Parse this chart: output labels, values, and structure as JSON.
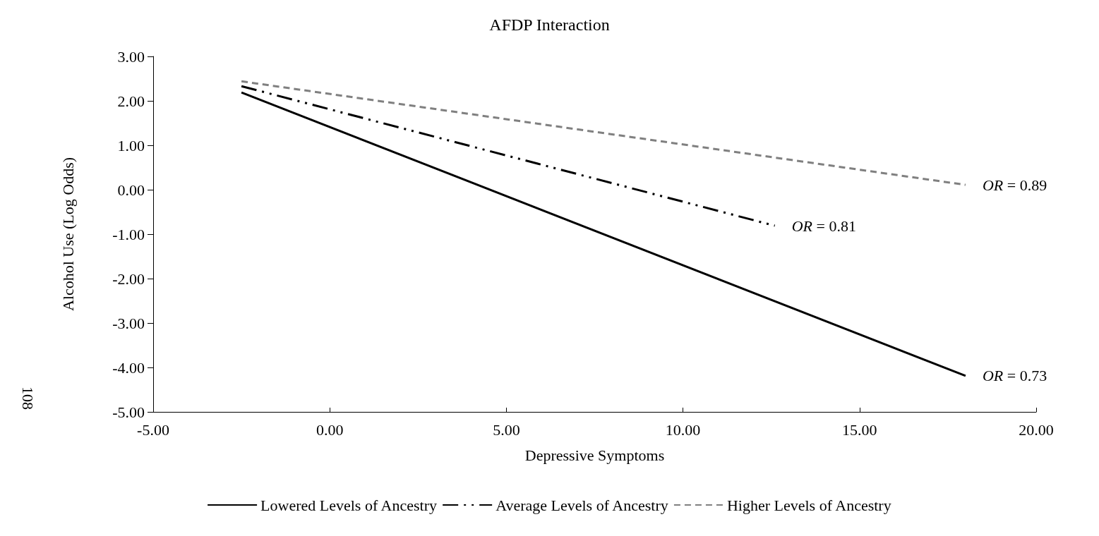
{
  "chart_data": {
    "type": "line",
    "title": "AFDP Interaction",
    "xlabel": "Depressive Symptoms",
    "ylabel": "Alcohol Use (Log Odds)",
    "xlim": [
      -5,
      20
    ],
    "xticks": [
      {
        "value": -5,
        "label": "-5.00"
      },
      {
        "value": 0,
        "label": "0.00"
      },
      {
        "value": 5,
        "label": "5.00"
      },
      {
        "value": 10,
        "label": "10.00"
      },
      {
        "value": 15,
        "label": "15.00"
      },
      {
        "value": 20,
        "label": "20.00"
      }
    ],
    "ylim": [
      -5,
      3
    ],
    "yticks": [
      {
        "value": -5,
        "label": "-5.00"
      },
      {
        "value": -4,
        "label": "-4.00"
      },
      {
        "value": -3,
        "label": "-3.00"
      },
      {
        "value": -2,
        "label": "-2.00"
      },
      {
        "value": -1,
        "label": "-1.00"
      },
      {
        "value": 0,
        "label": "0.00"
      },
      {
        "value": 1,
        "label": "1.00"
      },
      {
        "value": 2,
        "label": "2.00"
      },
      {
        "value": 3,
        "label": "3.00"
      }
    ],
    "grid": false,
    "legend": "bottom",
    "marker": "none",
    "series": [
      {
        "name": "Lowered Levels of Ancestry",
        "color": "#000000",
        "line_style": "solid",
        "x": [
          -2.5,
          18
        ],
        "values": [
          2.19,
          -4.19
        ]
      },
      {
        "name": "Average Levels of Ancestry",
        "color": "#000000",
        "line_style": "dashdotdot",
        "x": [
          -2.5,
          12.6
        ],
        "values": [
          2.33,
          -0.81
        ]
      },
      {
        "name": "Higher Levels of Ancestry",
        "color": "#808080",
        "line_style": "dashed",
        "x": [
          -2.5,
          18
        ],
        "values": [
          2.44,
          0.11
        ]
      }
    ],
    "annotations": [
      "OR = 0.73",
      "OR = 0.81",
      "OR = 0.89",
      "108"
    ]
  }
}
